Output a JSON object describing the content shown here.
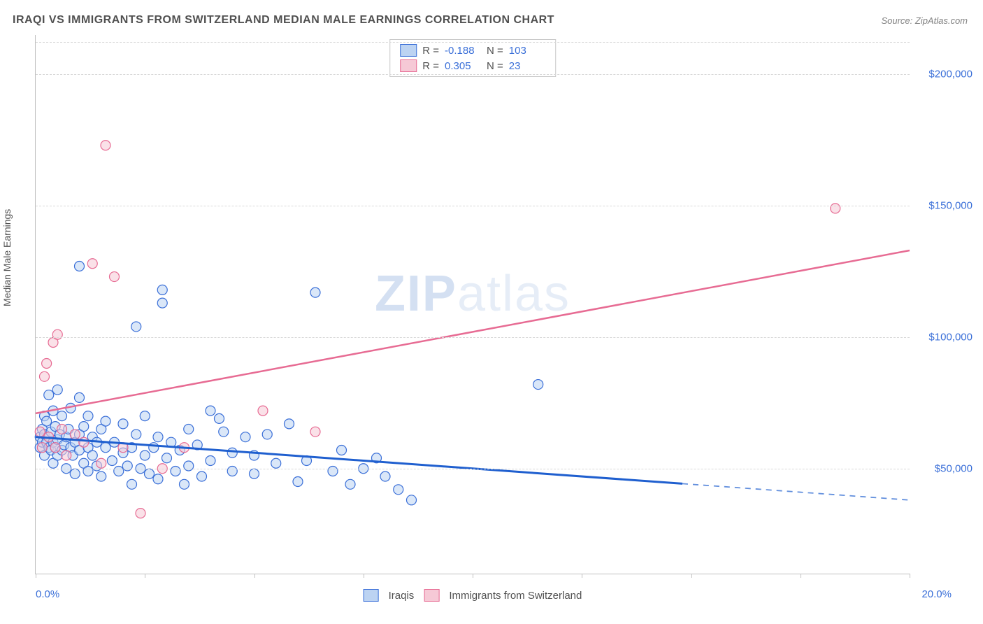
{
  "title": "IRAQI VS IMMIGRANTS FROM SWITZERLAND MEDIAN MALE EARNINGS CORRELATION CHART",
  "source": "Source: ZipAtlas.com",
  "watermark_a": "ZIP",
  "watermark_b": "atlas",
  "chart": {
    "type": "scatter-with-regression",
    "y_label": "Median Male Earnings",
    "x_min_label": "0.0%",
    "x_max_label": "20.0%",
    "xlim": [
      0,
      20
    ],
    "ylim": [
      10000,
      215000
    ],
    "y_ticks": [
      {
        "v": 50000,
        "label": "$50,000"
      },
      {
        "v": 100000,
        "label": "$100,000"
      },
      {
        "v": 150000,
        "label": "$150,000"
      },
      {
        "v": 200000,
        "label": "$200,000"
      }
    ],
    "x_tick_step": 2.5,
    "background_color": "#ffffff",
    "grid_color": "#d8d8d8",
    "axis_color": "#c0c0c0",
    "label_text_color": "#505050",
    "value_text_color": "#3a6fd8",
    "marker_radius": 7,
    "marker_opacity": 0.55,
    "series": [
      {
        "key": "iraqis",
        "name": "Iraqis",
        "color_fill": "#bcd3f2",
        "color_stroke": "#3a6fd8",
        "R_label": "R =",
        "R": "-0.188",
        "N_label": "N =",
        "N": "103",
        "regression": {
          "x1": 0,
          "y1": 62000,
          "x2": 20,
          "y2": 38000,
          "solid_until_x": 14.8,
          "color": "#1f5fcf",
          "width": 3
        },
        "points": [
          [
            0.1,
            62000
          ],
          [
            0.1,
            58000
          ],
          [
            0.15,
            65000
          ],
          [
            0.15,
            60000
          ],
          [
            0.2,
            63000
          ],
          [
            0.2,
            55000
          ],
          [
            0.2,
            70000
          ],
          [
            0.25,
            60000
          ],
          [
            0.25,
            68000
          ],
          [
            0.3,
            58000
          ],
          [
            0.3,
            62000
          ],
          [
            0.3,
            78000
          ],
          [
            0.35,
            57000
          ],
          [
            0.35,
            64000
          ],
          [
            0.4,
            60000
          ],
          [
            0.4,
            52000
          ],
          [
            0.4,
            72000
          ],
          [
            0.45,
            66000
          ],
          [
            0.45,
            58000
          ],
          [
            0.5,
            61000
          ],
          [
            0.5,
            55000
          ],
          [
            0.5,
            80000
          ],
          [
            0.55,
            63000
          ],
          [
            0.6,
            57000
          ],
          [
            0.6,
            70000
          ],
          [
            0.65,
            59000
          ],
          [
            0.7,
            62000
          ],
          [
            0.7,
            50000
          ],
          [
            0.75,
            65000
          ],
          [
            0.8,
            58000
          ],
          [
            0.8,
            73000
          ],
          [
            0.85,
            55000
          ],
          [
            0.9,
            60000
          ],
          [
            0.9,
            48000
          ],
          [
            1.0,
            63000
          ],
          [
            1.0,
            57000
          ],
          [
            1.0,
            77000
          ],
          [
            1.0,
            127000
          ],
          [
            1.1,
            52000
          ],
          [
            1.1,
            66000
          ],
          [
            1.2,
            58000
          ],
          [
            1.2,
            49000
          ],
          [
            1.2,
            70000
          ],
          [
            1.3,
            55000
          ],
          [
            1.3,
            62000
          ],
          [
            1.4,
            60000
          ],
          [
            1.4,
            51000
          ],
          [
            1.5,
            65000
          ],
          [
            1.5,
            47000
          ],
          [
            1.6,
            58000
          ],
          [
            1.6,
            68000
          ],
          [
            1.75,
            53000
          ],
          [
            1.8,
            60000
          ],
          [
            1.9,
            49000
          ],
          [
            2.0,
            56000
          ],
          [
            2.0,
            67000
          ],
          [
            2.1,
            51000
          ],
          [
            2.2,
            58000
          ],
          [
            2.2,
            44000
          ],
          [
            2.3,
            63000
          ],
          [
            2.3,
            104000
          ],
          [
            2.4,
            50000
          ],
          [
            2.5,
            70000
          ],
          [
            2.5,
            55000
          ],
          [
            2.6,
            48000
          ],
          [
            2.7,
            58000
          ],
          [
            2.8,
            62000
          ],
          [
            2.8,
            46000
          ],
          [
            2.9,
            113000
          ],
          [
            2.9,
            118000
          ],
          [
            3.0,
            54000
          ],
          [
            3.1,
            60000
          ],
          [
            3.2,
            49000
          ],
          [
            3.3,
            57000
          ],
          [
            3.4,
            44000
          ],
          [
            3.5,
            65000
          ],
          [
            3.5,
            51000
          ],
          [
            3.7,
            59000
          ],
          [
            3.8,
            47000
          ],
          [
            4.0,
            72000
          ],
          [
            4.0,
            53000
          ],
          [
            4.2,
            69000
          ],
          [
            4.3,
            64000
          ],
          [
            4.5,
            56000
          ],
          [
            4.5,
            49000
          ],
          [
            4.8,
            62000
          ],
          [
            5.0,
            55000
          ],
          [
            5.0,
            48000
          ],
          [
            5.3,
            63000
          ],
          [
            5.5,
            52000
          ],
          [
            5.8,
            67000
          ],
          [
            6.0,
            45000
          ],
          [
            6.2,
            53000
          ],
          [
            6.4,
            117000
          ],
          [
            6.8,
            49000
          ],
          [
            7.0,
            57000
          ],
          [
            7.2,
            44000
          ],
          [
            7.5,
            50000
          ],
          [
            7.8,
            54000
          ],
          [
            8.0,
            47000
          ],
          [
            8.3,
            42000
          ],
          [
            8.6,
            38000
          ],
          [
            11.5,
            82000
          ]
        ]
      },
      {
        "key": "swiss",
        "name": "Immigrants from Switzerland",
        "color_fill": "#f6c9d6",
        "color_stroke": "#e76b93",
        "R_label": "R =",
        "R": "0.305",
        "N_label": "N =",
        "N": "23",
        "regression": {
          "x1": 0,
          "y1": 71000,
          "x2": 20,
          "y2": 133000,
          "solid_until_x": 20,
          "color": "#e76b93",
          "width": 2.5
        },
        "points": [
          [
            0.1,
            64000
          ],
          [
            0.15,
            58000
          ],
          [
            0.2,
            85000
          ],
          [
            0.25,
            90000
          ],
          [
            0.3,
            62000
          ],
          [
            0.4,
            98000
          ],
          [
            0.45,
            58000
          ],
          [
            0.5,
            101000
          ],
          [
            0.6,
            65000
          ],
          [
            0.7,
            55000
          ],
          [
            0.9,
            63000
          ],
          [
            1.1,
            60000
          ],
          [
            1.3,
            128000
          ],
          [
            1.5,
            52000
          ],
          [
            1.6,
            173000
          ],
          [
            1.8,
            123000
          ],
          [
            2.0,
            58000
          ],
          [
            2.4,
            33000
          ],
          [
            2.9,
            50000
          ],
          [
            3.4,
            58000
          ],
          [
            5.2,
            72000
          ],
          [
            6.4,
            64000
          ],
          [
            18.3,
            149000
          ]
        ]
      }
    ]
  }
}
